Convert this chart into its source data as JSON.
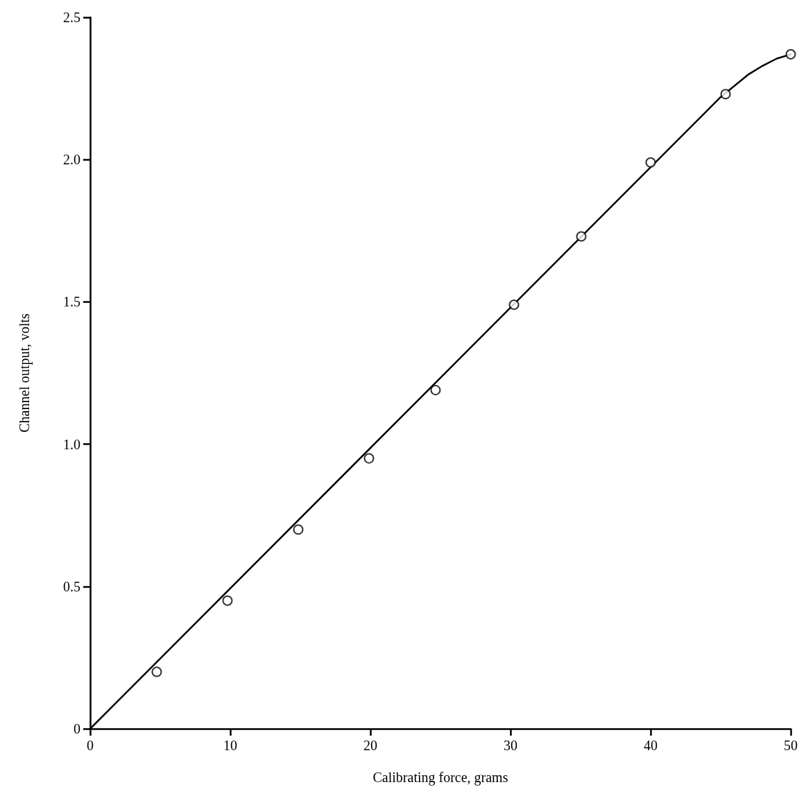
{
  "chart_data": {
    "type": "scatter",
    "xlabel": "Calibrating force, grams",
    "ylabel": "Channel output, volts",
    "xlim": [
      0,
      50
    ],
    "ylim": [
      0,
      2.5
    ],
    "xticks": [
      0,
      10,
      20,
      30,
      40,
      50
    ],
    "yticks": [
      0,
      0.5,
      {
        "value": 1,
        "label": "1.0"
      },
      1.5,
      {
        "value": 2,
        "label": "2.0"
      },
      2.5
    ],
    "grid": false,
    "series": [
      {
        "type": "line",
        "color": "#000000",
        "marker": "none",
        "line_style": "solid",
        "x": [
          0,
          45,
          46,
          47,
          48,
          49,
          50
        ],
        "values": [
          0,
          2.22,
          2.26,
          2.3,
          2.33,
          2.355,
          2.37
        ]
      },
      {
        "color": "#000000",
        "marker": "circle",
        "x": [
          4.75,
          9.8,
          14.85,
          19.9,
          24.65,
          30.25,
          35.05,
          40.0,
          45.35,
          50
        ],
        "values": [
          0.2,
          0.45,
          0.7,
          0.95,
          1.19,
          1.49,
          1.73,
          1.99,
          2.23,
          2.37
        ]
      }
    ]
  }
}
